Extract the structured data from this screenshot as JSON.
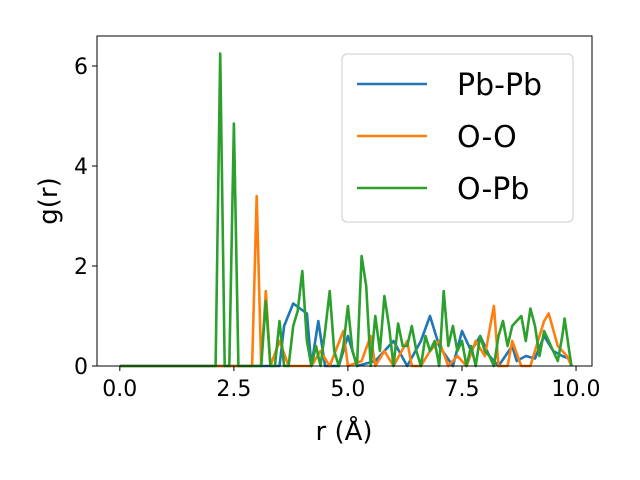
{
  "chart_data": {
    "type": "line",
    "xlabel": "r (Å)",
    "ylabel": "g(r)",
    "xlim": [
      -0.5,
      10.35
    ],
    "ylim": [
      0,
      6.6
    ],
    "xticks": [
      0.0,
      2.5,
      5.0,
      7.5,
      10.0
    ],
    "xtick_labels": [
      "0.0",
      "2.5",
      "5.0",
      "7.5",
      "10.0"
    ],
    "yticks": [
      0,
      2,
      4,
      6
    ],
    "ytick_labels": [
      "0",
      "2",
      "4",
      "6"
    ],
    "legend": "top-right",
    "grid": false,
    "series": [
      {
        "name": "Pb-Pb",
        "color": "#1f77b4",
        "points": [
          [
            0.0,
            0
          ],
          [
            3.5,
            0
          ],
          [
            3.6,
            0.8
          ],
          [
            3.8,
            1.25
          ],
          [
            4.1,
            1.05
          ],
          [
            4.2,
            0
          ],
          [
            4.35,
            0.9
          ],
          [
            4.5,
            0
          ],
          [
            4.8,
            0
          ],
          [
            5.0,
            0.6
          ],
          [
            5.2,
            0
          ],
          [
            5.6,
            0.1
          ],
          [
            6.0,
            0.5
          ],
          [
            6.3,
            0
          ],
          [
            6.6,
            0.5
          ],
          [
            6.8,
            1.0
          ],
          [
            7.0,
            0.4
          ],
          [
            7.3,
            0
          ],
          [
            7.5,
            0.7
          ],
          [
            7.7,
            0.3
          ],
          [
            7.9,
            0.6
          ],
          [
            8.1,
            0.2
          ],
          [
            8.3,
            0
          ],
          [
            8.6,
            0.4
          ],
          [
            8.7,
            0.1
          ],
          [
            8.9,
            0.2
          ],
          [
            9.1,
            0.15
          ],
          [
            9.3,
            0.6
          ],
          [
            9.5,
            0.3
          ],
          [
            9.7,
            0.2
          ],
          [
            9.85,
            0.15
          ]
        ]
      },
      {
        "name": "O-O",
        "color": "#ff7f0e",
        "points": [
          [
            0.0,
            0
          ],
          [
            2.9,
            0
          ],
          [
            3.0,
            3.4
          ],
          [
            3.1,
            0
          ],
          [
            3.2,
            1.5
          ],
          [
            3.3,
            0
          ],
          [
            3.5,
            0.5
          ],
          [
            3.7,
            0
          ],
          [
            4.2,
            0
          ],
          [
            4.4,
            0.3
          ],
          [
            4.6,
            0
          ],
          [
            4.9,
            0.7
          ],
          [
            5.0,
            0
          ],
          [
            5.3,
            0.1
          ],
          [
            5.5,
            0.6
          ],
          [
            5.6,
            0
          ],
          [
            5.8,
            0.3
          ],
          [
            6.0,
            0
          ],
          [
            6.3,
            0.5
          ],
          [
            6.4,
            0
          ],
          [
            6.6,
            0
          ],
          [
            6.8,
            0.3
          ],
          [
            7.0,
            0.5
          ],
          [
            7.2,
            0
          ],
          [
            7.4,
            0.2
          ],
          [
            7.6,
            0
          ],
          [
            7.8,
            0.5
          ],
          [
            8.0,
            0.2
          ],
          [
            8.2,
            1.2
          ],
          [
            8.3,
            0
          ],
          [
            8.5,
            0
          ],
          [
            8.6,
            0.5
          ],
          [
            8.8,
            0
          ],
          [
            9.0,
            0
          ],
          [
            9.2,
            0.6
          ],
          [
            9.3,
            0.9
          ],
          [
            9.4,
            1.05
          ],
          [
            9.6,
            0.4
          ],
          [
            9.8,
            0.2
          ],
          [
            9.9,
            0
          ]
        ]
      },
      {
        "name": "O-Pb",
        "color": "#2ca02c",
        "points": [
          [
            0.0,
            0
          ],
          [
            2.1,
            0
          ],
          [
            2.2,
            6.25
          ],
          [
            2.3,
            0
          ],
          [
            2.4,
            0
          ],
          [
            2.5,
            4.85
          ],
          [
            2.6,
            0
          ],
          [
            3.1,
            0
          ],
          [
            3.2,
            1.3
          ],
          [
            3.3,
            0
          ],
          [
            3.4,
            0
          ],
          [
            3.5,
            0.9
          ],
          [
            3.6,
            0
          ],
          [
            3.7,
            0
          ],
          [
            3.8,
            0.8
          ],
          [
            3.9,
            1.1
          ],
          [
            4.0,
            1.9
          ],
          [
            4.1,
            0.5
          ],
          [
            4.2,
            0
          ],
          [
            4.3,
            0.4
          ],
          [
            4.4,
            0
          ],
          [
            4.5,
            0.7
          ],
          [
            4.6,
            1.5
          ],
          [
            4.7,
            0.3
          ],
          [
            4.8,
            0
          ],
          [
            4.9,
            0.4
          ],
          [
            5.0,
            1.2
          ],
          [
            5.1,
            0.3
          ],
          [
            5.2,
            0
          ],
          [
            5.3,
            2.2
          ],
          [
            5.4,
            1.6
          ],
          [
            5.5,
            0
          ],
          [
            5.6,
            1.0
          ],
          [
            5.7,
            0.3
          ],
          [
            5.8,
            1.4
          ],
          [
            5.9,
            0.8
          ],
          [
            6.0,
            0
          ],
          [
            6.1,
            0.85
          ],
          [
            6.2,
            0.4
          ],
          [
            6.3,
            0.4
          ],
          [
            6.4,
            0.8
          ],
          [
            6.5,
            0.3
          ],
          [
            6.6,
            0
          ],
          [
            6.7,
            0.6
          ],
          [
            6.8,
            0.3
          ],
          [
            6.9,
            0.5
          ],
          [
            7.0,
            0
          ],
          [
            7.1,
            1.5
          ],
          [
            7.2,
            0.4
          ],
          [
            7.3,
            0.8
          ],
          [
            7.4,
            0.3
          ],
          [
            7.5,
            0.5
          ],
          [
            7.6,
            0
          ],
          [
            7.7,
            0.4
          ],
          [
            7.8,
            0
          ],
          [
            7.9,
            0.6
          ],
          [
            8.0,
            0.3
          ],
          [
            8.1,
            0.2
          ],
          [
            8.2,
            0
          ],
          [
            8.3,
            0.6
          ],
          [
            8.4,
            0.9
          ],
          [
            8.5,
            0.4
          ],
          [
            8.6,
            0.8
          ],
          [
            8.7,
            0.9
          ],
          [
            8.8,
            1.0
          ],
          [
            8.9,
            0.5
          ],
          [
            9.0,
            1.15
          ],
          [
            9.1,
            0.8
          ],
          [
            9.2,
            0.2
          ],
          [
            9.3,
            0.7
          ],
          [
            9.4,
            0.5
          ],
          [
            9.5,
            0.3
          ],
          [
            9.6,
            0.1
          ],
          [
            9.7,
            0.6
          ],
          [
            9.75,
            0.95
          ],
          [
            9.85,
            0.3
          ],
          [
            9.9,
            0
          ]
        ]
      }
    ]
  }
}
